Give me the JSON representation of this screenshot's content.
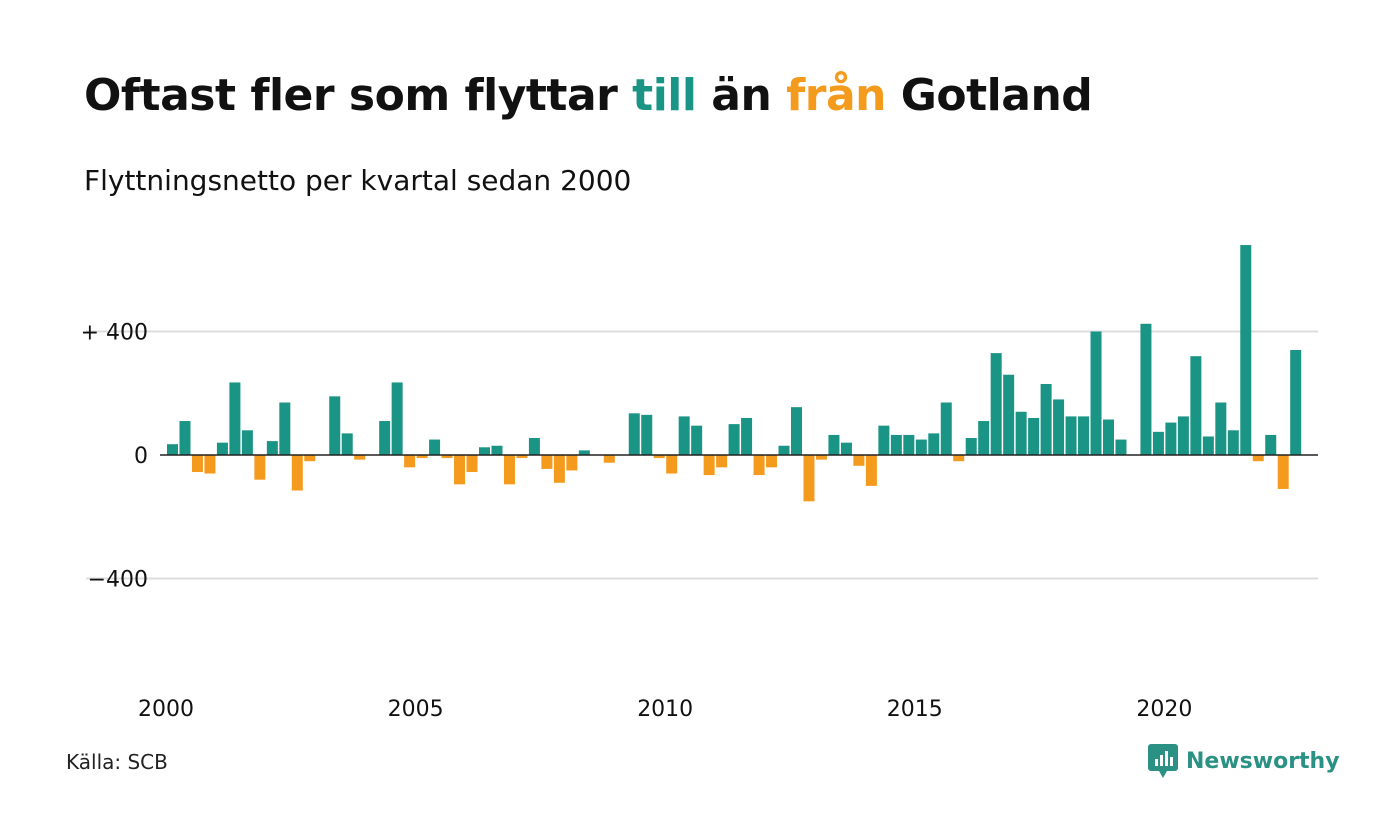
{
  "title": {
    "part1": "Oftast fler som flyttar ",
    "till": "till",
    "part2": " än ",
    "fran": "från",
    "part3": " Gotland"
  },
  "subtitle": "Flyttningsnetto per kvartal sedan 2000",
  "source": "Källa: SCB",
  "brand": "Newsworthy",
  "colors": {
    "positive": "#1a9484",
    "negative": "#f49a1d",
    "grid": "#dddddd",
    "zero_line": "#222222",
    "brand": "#2a9184"
  },
  "chart_data": {
    "type": "bar",
    "start_year": 2000,
    "periods_per_year": 4,
    "ylim": [
      -700,
      700
    ],
    "yticks": [
      {
        "value": 400,
        "label": "+ 400"
      },
      {
        "value": 0,
        "label": "0"
      },
      {
        "value": -400,
        "label": "−400"
      }
    ],
    "xticks": [
      "2000",
      "2005",
      "2010",
      "2015",
      "2020"
    ],
    "grid": true,
    "values": [
      35,
      110,
      -55,
      -60,
      40,
      235,
      80,
      -80,
      45,
      170,
      -115,
      -20,
      0,
      190,
      70,
      -15,
      0,
      110,
      235,
      -40,
      -10,
      50,
      -10,
      -95,
      -55,
      25,
      30,
      -95,
      -10,
      55,
      -45,
      -90,
      -50,
      15,
      0,
      -25,
      0,
      135,
      130,
      -10,
      -60,
      125,
      95,
      -65,
      -40,
      100,
      120,
      -65,
      -40,
      30,
      155,
      -150,
      -15,
      65,
      40,
      -35,
      -100,
      95,
      65,
      65,
      50,
      70,
      170,
      -20,
      55,
      110,
      330,
      260,
      140,
      120,
      230,
      180,
      125,
      125,
      400,
      115,
      50,
      0,
      425,
      75,
      105,
      125,
      320,
      60,
      170,
      80,
      680,
      -20,
      65,
      -110,
      340
    ]
  }
}
